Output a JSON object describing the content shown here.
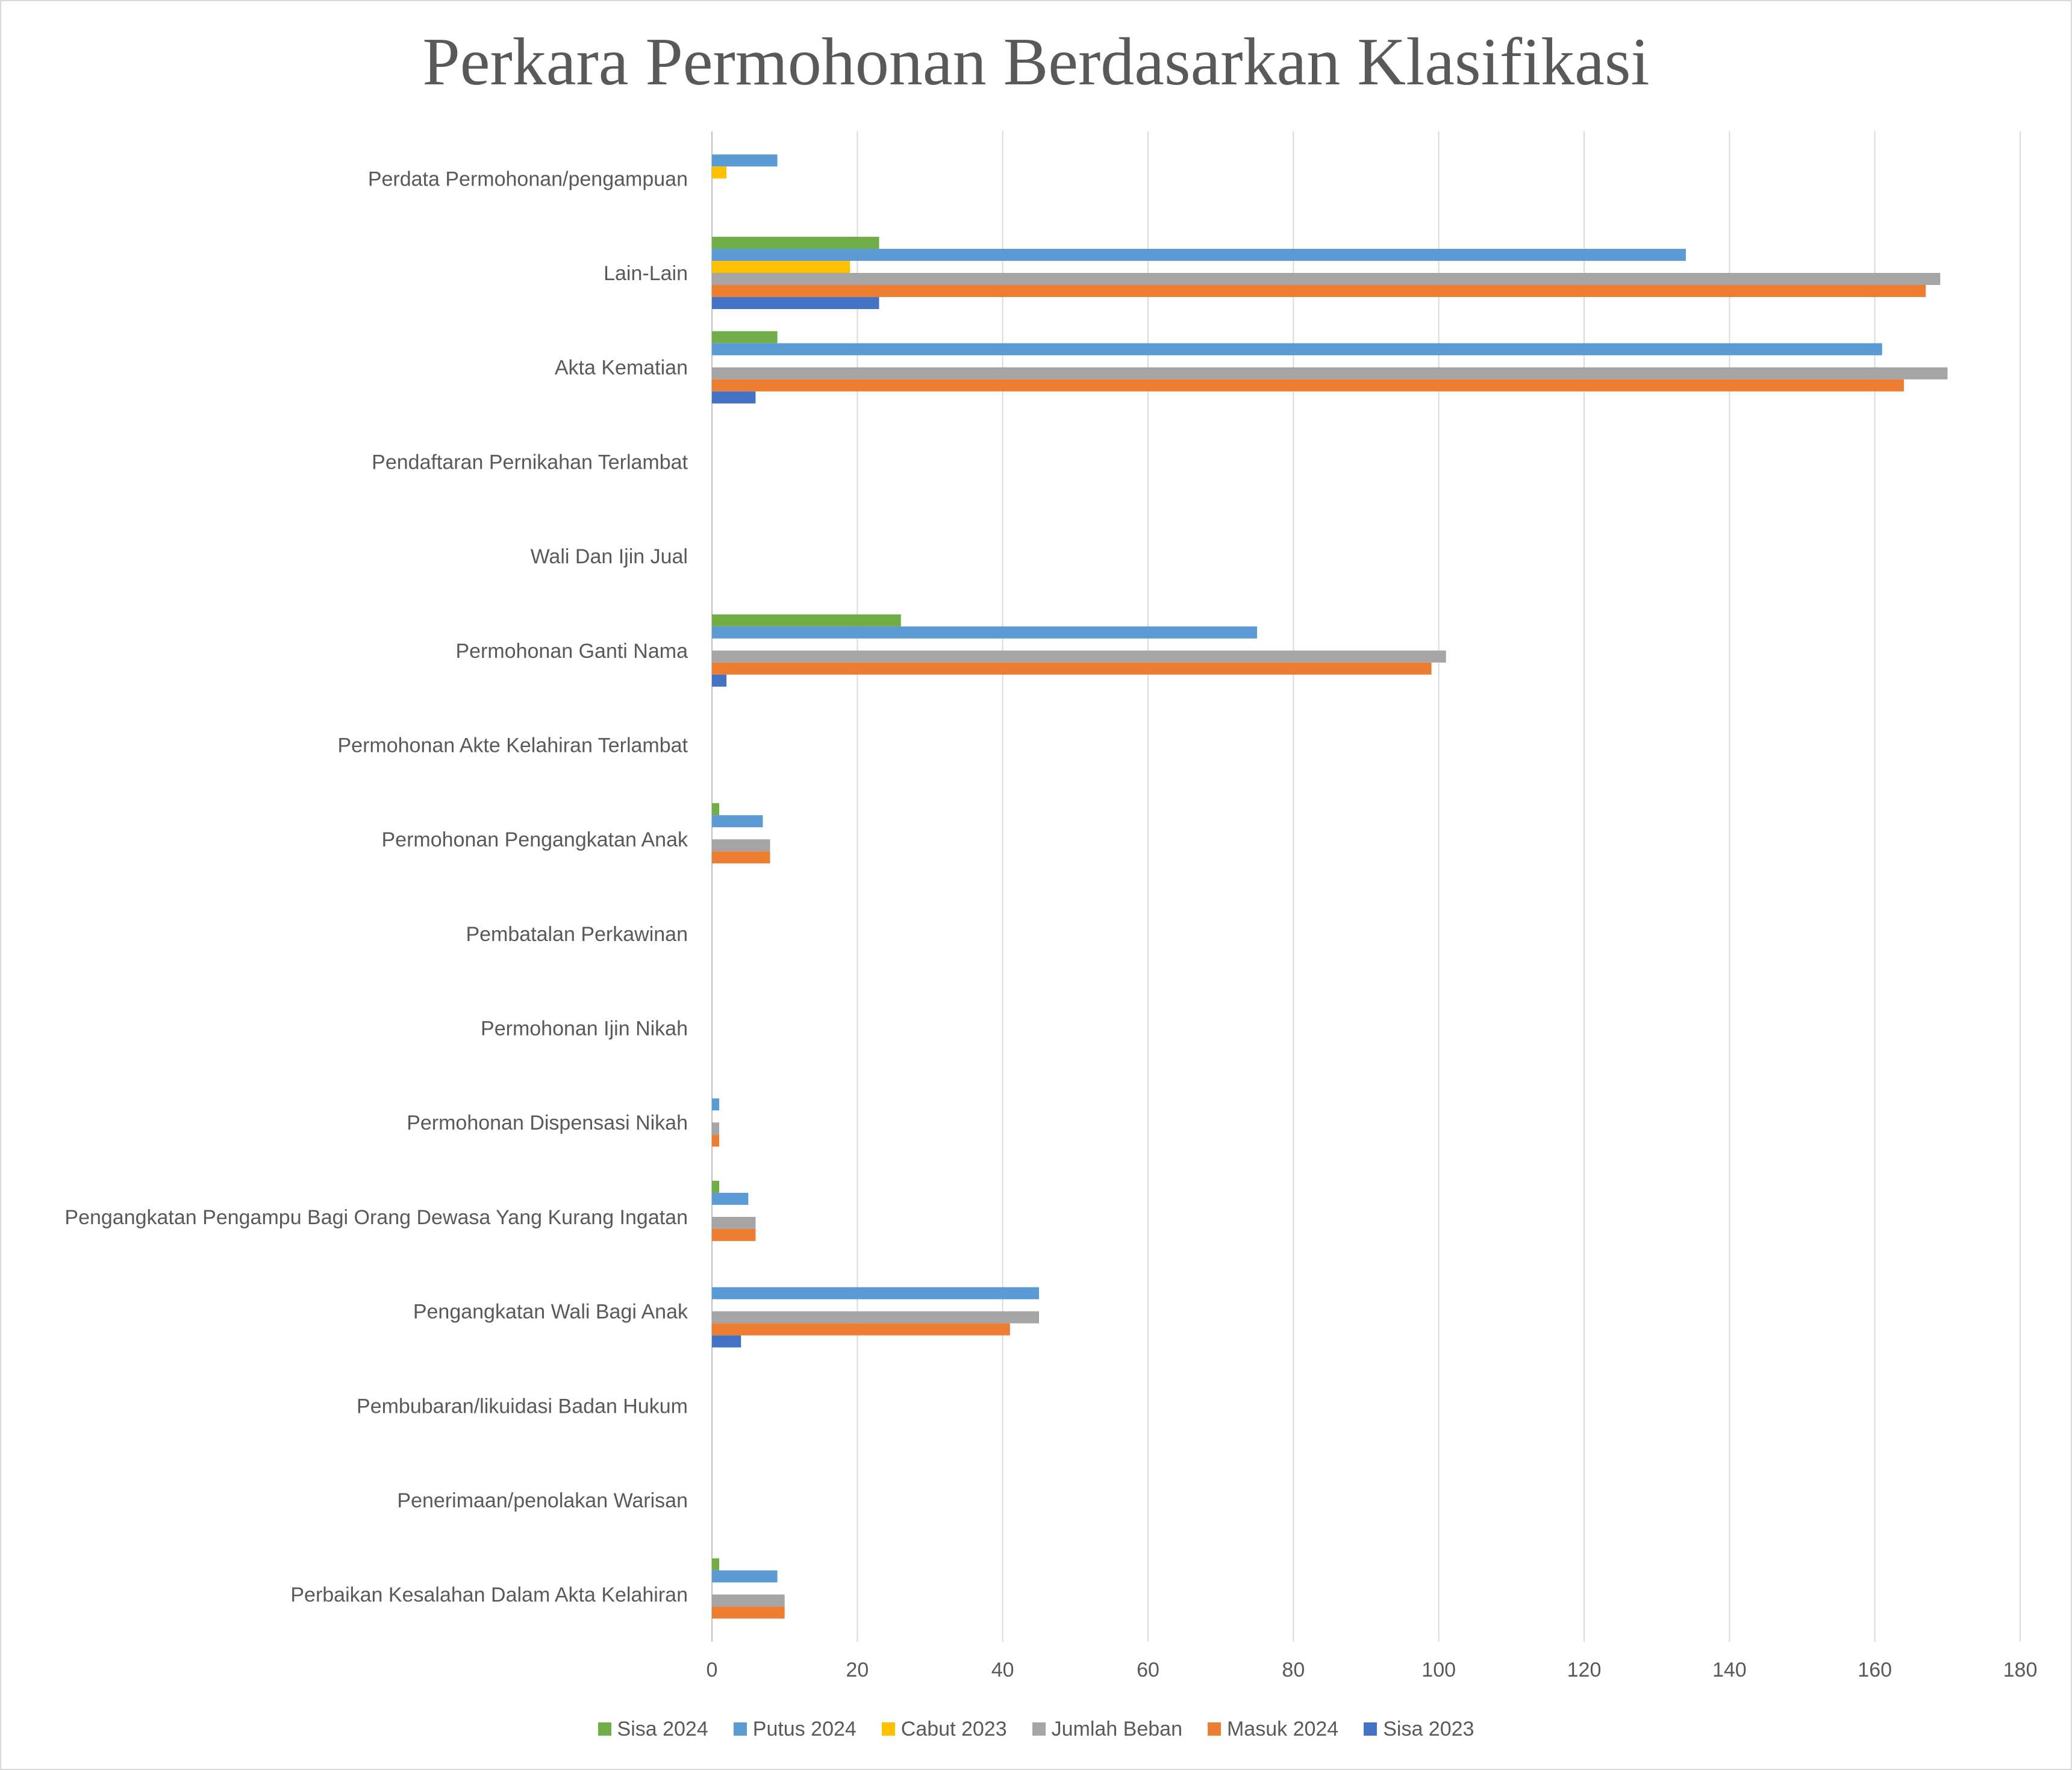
{
  "chart_data": {
    "type": "bar",
    "orientation": "horizontal",
    "title": "Perkara Permohonan Berdasarkan Klasifikasi",
    "xlim": [
      0,
      180
    ],
    "x_ticks": [
      0,
      20,
      40,
      60,
      80,
      100,
      120,
      140,
      160,
      180
    ],
    "grid": true,
    "legend_position": "bottom",
    "categories": [
      "Perdata Permohonan/pengampuan",
      "Lain-Lain",
      "Akta Kematian",
      "Pendaftaran Pernikahan Terlambat",
      "Wali Dan Ijin Jual",
      "Permohonan Ganti Nama",
      "Permohonan Akte Kelahiran Terlambat",
      "Permohonan Pengangkatan Anak",
      "Pembatalan Perkawinan",
      "Permohonan Ijin Nikah",
      "Permohonan Dispensasi Nikah",
      "Pengangkatan Pengampu Bagi Orang Dewasa Yang Kurang Ingatan",
      "Pengangkatan Wali Bagi Anak",
      "Pembubaran/likuidasi Badan Hukum",
      "Penerimaan/penolakan Warisan",
      "Perbaikan Kesalahan Dalam Akta Kelahiran"
    ],
    "series": [
      {
        "name": "Sisa 2024",
        "color": "#70ad47",
        "values": [
          0,
          23,
          9,
          0,
          0,
          26,
          0,
          1,
          0,
          0,
          0,
          1,
          0,
          0,
          0,
          1
        ]
      },
      {
        "name": "Putus 2024",
        "color": "#5b9bd5",
        "values": [
          9,
          134,
          161,
          0,
          0,
          75,
          0,
          7,
          0,
          0,
          1,
          5,
          45,
          0,
          0,
          9
        ]
      },
      {
        "name": "Cabut 2023",
        "color": "#ffc000",
        "values": [
          2,
          19,
          0,
          0,
          0,
          0,
          0,
          0,
          0,
          0,
          0,
          0,
          0,
          0,
          0,
          0
        ]
      },
      {
        "name": "Jumlah Beban",
        "color": "#a5a5a5",
        "values": [
          0,
          169,
          170,
          0,
          0,
          101,
          0,
          8,
          0,
          0,
          1,
          6,
          45,
          0,
          0,
          10
        ]
      },
      {
        "name": "Masuk 2024",
        "color": "#ed7d31",
        "values": [
          0,
          167,
          164,
          0,
          0,
          99,
          0,
          8,
          0,
          0,
          1,
          6,
          41,
          0,
          0,
          10
        ]
      },
      {
        "name": "Sisa 2023",
        "color": "#4472c4",
        "values": [
          0,
          23,
          6,
          0,
          0,
          2,
          0,
          0,
          0,
          0,
          0,
          0,
          4,
          0,
          0,
          0
        ]
      }
    ]
  }
}
